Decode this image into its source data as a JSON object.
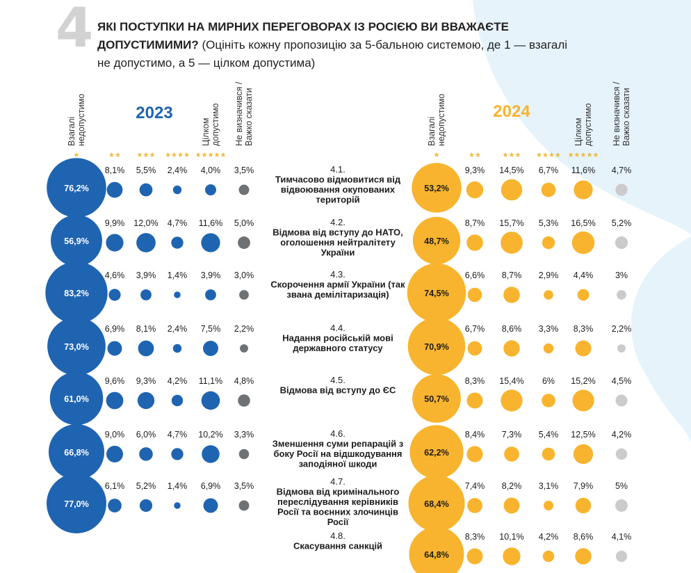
{
  "header": {
    "number": "4",
    "question": "ЯКІ ПОСТУПКИ НА МИРНИХ ПЕРЕГОВОРАХ ІЗ РОСІЄЮ ВИ ВВАЖАЄТЕ ДОПУСТИМИМИ?",
    "instruction": "(Оцініть кожну пропозицію за 5-бальною системою, де 1 — взагалі не допустимо, а 5 — цілком допустима)"
  },
  "colors": {
    "y2023": "#1f64b1",
    "y2024": "#f8b42e",
    "undecided_2023": "#6f7275",
    "undecided_2024": "#cbcbcb",
    "background_blob": "#e6f3fb",
    "stars": "#f0b83c"
  },
  "chart_data": {
    "type": "bubble-table",
    "years": [
      "2023",
      "2024"
    ],
    "columns": [
      {
        "label": "Взагалі недопустимо",
        "stars": "★"
      },
      {
        "label": "",
        "stars": "★★"
      },
      {
        "label": "",
        "stars": "★★★"
      },
      {
        "label": "",
        "stars": "★★★★"
      },
      {
        "label": "Цілком допустимо",
        "stars": "★★★★★"
      },
      {
        "label": "Не визначився / Важко сказати",
        "stars": ""
      }
    ],
    "rows": [
      {
        "code": "4.1.",
        "text": [
          "Тимчасово відмовитися від",
          "відвоювання окупованих",
          "територій"
        ],
        "v2023": [
          76.2,
          8.1,
          5.5,
          2.4,
          4.0,
          3.5
        ],
        "l2023": [
          "76,2%",
          "8,1%",
          "5,5%",
          "2,4%",
          "4,0%",
          "3,5%"
        ],
        "v2024": [
          53.2,
          9.3,
          14.5,
          6.7,
          11.6,
          4.7
        ],
        "l2024": [
          "53,2%",
          "9,3%",
          "14,5%",
          "6,7%",
          "11,6%",
          "4,7%"
        ]
      },
      {
        "code": "4.2.",
        "text": [
          "Відмова від вступу до НАТО,",
          "оголошення нейтралітету",
          "України"
        ],
        "v2023": [
          56.9,
          9.9,
          12.0,
          4.7,
          11.6,
          5.0
        ],
        "l2023": [
          "56,9%",
          "9,9%",
          "12,0%",
          "4,7%",
          "11,6%",
          "5,0%"
        ],
        "v2024": [
          48.7,
          8.7,
          15.7,
          5.3,
          16.5,
          5.2
        ],
        "l2024": [
          "48,7%",
          "8,7%",
          "15,7%",
          "5,3%",
          "16,5%",
          "5,2%"
        ]
      },
      {
        "code": "4.3.",
        "text": [
          "Скорочення армії України (так",
          "звана демілітаризація)"
        ],
        "v2023": [
          83.2,
          4.6,
          3.9,
          1.4,
          3.9,
          3.0
        ],
        "l2023": [
          "83,2%",
          "4,6%",
          "3,9%",
          "1,4%",
          "3,9%",
          "3,0%"
        ],
        "v2024": [
          74.5,
          6.6,
          8.7,
          2.9,
          4.4,
          3
        ],
        "l2024": [
          "74,5%",
          "6,6%",
          "8,7%",
          "2,9%",
          "4,4%",
          "3%"
        ]
      },
      {
        "code": "4.4.",
        "text": [
          "Надання російській мові",
          "державного статусу"
        ],
        "v2023": [
          73.0,
          6.9,
          8.1,
          2.4,
          7.5,
          2.2
        ],
        "l2023": [
          "73,0%",
          "6,9%",
          "8,1%",
          "2,4%",
          "7,5%",
          "2,2%"
        ],
        "v2024": [
          70.9,
          6.7,
          8.6,
          3.3,
          8.3,
          2.2
        ],
        "l2024": [
          "70,9%",
          "6,7%",
          "8,6%",
          "3,3%",
          "8,3%",
          "2,2%"
        ]
      },
      {
        "code": "4.5.",
        "text": [
          "Відмова від вступу до ЄС"
        ],
        "v2023": [
          61.0,
          9.6,
          9.3,
          4.2,
          11.1,
          4.8
        ],
        "l2023": [
          "61,0%",
          "9,6%",
          "9,3%",
          "4,2%",
          "11,1%",
          "4,8%"
        ],
        "v2024": [
          50.7,
          8.3,
          15.4,
          6,
          15.2,
          4.5
        ],
        "l2024": [
          "50,7%",
          "8,3%",
          "15,4%",
          "6%",
          "15,2%",
          "4,5%"
        ]
      },
      {
        "code": "4.6.",
        "text": [
          "Зменшення суми репарацій з",
          "боку Росії на відшкодування",
          "заподіяної шкоди"
        ],
        "v2023": [
          66.8,
          9.0,
          6.0,
          4.7,
          10.2,
          3.3
        ],
        "l2023": [
          "66,8%",
          "9,0%",
          "6,0%",
          "4,7%",
          "10,2%",
          "3,3%"
        ],
        "v2024": [
          62.2,
          8.4,
          7.3,
          5.4,
          12.5,
          4.2
        ],
        "l2024": [
          "62,2%",
          "8,4%",
          "7,3%",
          "5,4%",
          "12,5%",
          "4,2%"
        ]
      },
      {
        "code": "4.7.",
        "text": [
          "Відмова від кримінального",
          "переслідування керівників",
          "Росії та воєнних злочинців",
          "Росії"
        ],
        "v2023": [
          77.0,
          6.1,
          5.2,
          1.4,
          6.9,
          3.5
        ],
        "l2023": [
          "77,0%",
          "6,1%",
          "5,2%",
          "1,4%",
          "6,9%",
          "3,5%"
        ],
        "v2024": [
          68.4,
          7.4,
          8.2,
          3.1,
          7.9,
          5
        ],
        "l2024": [
          "68,4%",
          "7,4%",
          "8,2%",
          "3,1%",
          "7,9%",
          "5%"
        ]
      },
      {
        "code": "4.8.",
        "text": [
          "Скасування санкцій"
        ],
        "v2023": null,
        "l2023": null,
        "v2024": [
          64.8,
          8.3,
          10.1,
          4.2,
          8.6,
          4.1
        ],
        "l2024": [
          "64,8%",
          "8,3%",
          "10,1%",
          "4,2%",
          "8,6%",
          "4,1%"
        ]
      }
    ]
  }
}
